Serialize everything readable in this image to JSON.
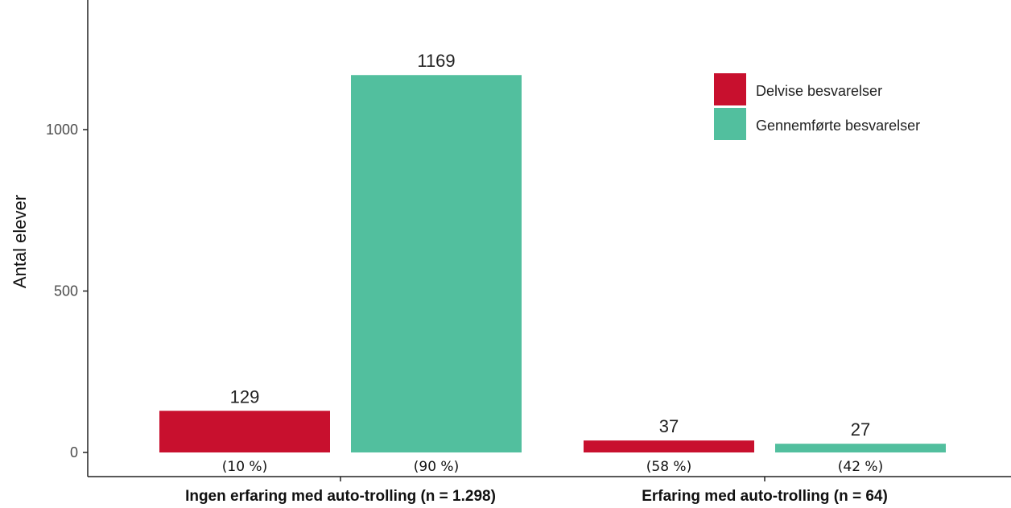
{
  "chart_data": {
    "type": "bar",
    "title": "",
    "xlabel": "",
    "ylabel": "Antal elever",
    "ylim": [
      0,
      1350
    ],
    "yticks": [
      "0",
      "500",
      "1000"
    ],
    "grid": false,
    "legend_position": "top-right",
    "colors": {
      "Delvise besvarelser": "#c8102e",
      "Gennemførte besvarelser": "#52bf9e"
    },
    "categories": [
      "Ingen erfaring med auto-trolling (n = 1.298)",
      "Erfaring med auto-trolling (n = 64)"
    ],
    "series": [
      {
        "name": "Delvise besvarelser",
        "values": [
          129,
          37
        ],
        "value_labels": [
          "129",
          "37"
        ],
        "percent_labels": [
          "(10 %)",
          "(58 %)"
        ]
      },
      {
        "name": "Gennemførte besvarelser",
        "values": [
          1169,
          27
        ],
        "value_labels": [
          "1169",
          "27"
        ],
        "percent_labels": [
          "(90 %)",
          "(42 %)"
        ]
      }
    ]
  }
}
